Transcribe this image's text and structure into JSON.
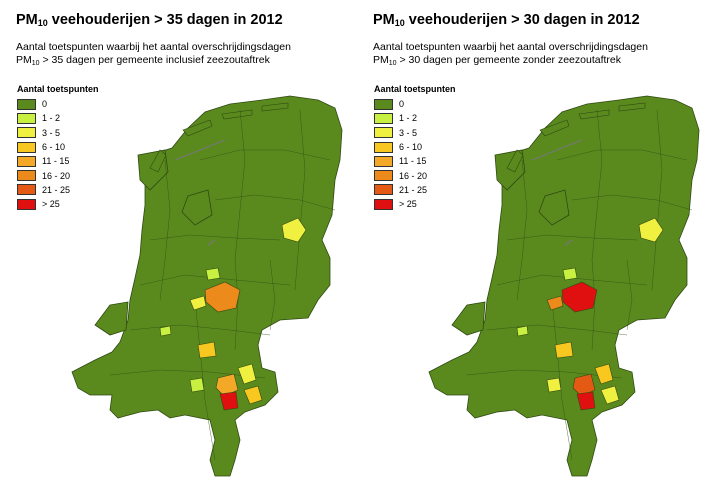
{
  "legend": {
    "title": "Aantal toetspunten",
    "classes": [
      {
        "label": "0",
        "color": "#5a8a1e"
      },
      {
        "label": "1 - 2",
        "color": "#c8f040"
      },
      {
        "label": "3 - 5",
        "color": "#f0f040"
      },
      {
        "label": "6 - 10",
        "color": "#f8c820"
      },
      {
        "label": "11 - 15",
        "color": "#f4a828"
      },
      {
        "label": "16 - 20",
        "color": "#ec8a1c"
      },
      {
        "label": "21 - 25",
        "color": "#e45a14"
      },
      {
        "label": "> 25",
        "color": "#e01010"
      }
    ]
  },
  "maps": [
    {
      "title_prefix": "PM",
      "title_sub": "10",
      "title_suffix": " veehouderijen > 35 dagen in 2012",
      "subtitle_line1": "Aantal toetspunten waarbij het aantal overschrijdingsdagen",
      "subtitle_prefix2": "PM",
      "subtitle_sub2": "10",
      "subtitle_suffix2": " > 35 dagen per gemeente inclusief zeezoutaftrek",
      "highlighted_regions": [
        {
          "region": "oost-friesland-gemeente",
          "class": "3 - 5"
        },
        {
          "region": "west-noordholland-gemeente",
          "class": "1 - 2"
        },
        {
          "region": "barneveld-gemeente",
          "class": "16 - 20"
        },
        {
          "region": "utrecht-oost-gemeente",
          "class": "3 - 5"
        },
        {
          "region": "gelderland-gemeente-a",
          "class": "6 - 10"
        },
        {
          "region": "gelderland-gemeente-b",
          "class": "1 - 2"
        },
        {
          "region": "brabant-gemeente-a",
          "class": "11 - 15"
        },
        {
          "region": "brabant-gemeente-b",
          "class": "3 - 5"
        },
        {
          "region": "brabant-gemeente-c",
          "class": "1 - 2"
        },
        {
          "region": "oost-brabant-gemeente",
          "class": "6 - 10"
        },
        {
          "region": "peel-gemeente",
          "class": "> 25"
        }
      ]
    },
    {
      "title_prefix": "PM",
      "title_sub": "10",
      "title_suffix": " veehouderijen > 30 dagen in 2012",
      "subtitle_line1": "Aantal toetspunten waarbij het aantal overschrijdingsdagen",
      "subtitle_prefix2": "PM",
      "subtitle_sub2": "10",
      "subtitle_suffix2": " > 30 dagen per gemeente zonder zeezoutaftrek",
      "highlighted_regions": [
        {
          "region": "oost-friesland-gemeente",
          "class": "3 - 5"
        },
        {
          "region": "west-noordholland-gemeente",
          "class": "1 - 2"
        },
        {
          "region": "barneveld-gemeente",
          "class": "> 25"
        },
        {
          "region": "utrecht-oost-gemeente",
          "class": "16 - 20"
        },
        {
          "region": "gelderland-gemeente-a",
          "class": "6 - 10"
        },
        {
          "region": "gelderland-gemeente-b",
          "class": "1 - 2"
        },
        {
          "region": "brabant-gemeente-a",
          "class": "21 - 25"
        },
        {
          "region": "brabant-gemeente-b",
          "class": "6 - 10"
        },
        {
          "region": "brabant-gemeente-c",
          "class": "3 - 5"
        },
        {
          "region": "oost-brabant-gemeente",
          "class": "3 - 5"
        },
        {
          "region": "peel-gemeente",
          "class": "> 25"
        }
      ]
    }
  ]
}
